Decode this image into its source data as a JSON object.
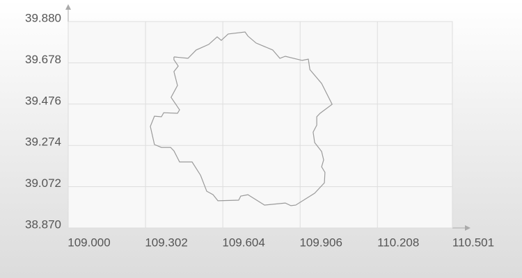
{
  "chart_data": {
    "type": "line",
    "x": [
      109.413,
      109.468,
      109.5,
      109.549,
      109.582,
      109.598,
      109.625,
      109.691,
      109.702,
      109.734,
      109.799,
      109.827,
      109.848,
      109.914,
      109.938,
      109.944,
      109.99,
      110.031,
      109.984,
      109.971,
      109.971,
      109.957,
      109.963,
      109.99,
      109.998,
      109.99,
      110.003,
      110.001,
      109.963,
      109.889,
      109.87,
      109.848,
      109.767,
      109.702,
      109.674,
      109.666,
      109.585,
      109.566,
      109.541,
      109.517,
      109.484,
      109.435,
      109.413,
      109.4,
      109.364,
      109.337,
      109.321,
      109.337,
      109.364,
      109.373,
      109.427,
      109.435,
      109.402,
      109.427,
      109.413,
      109.43,
      109.413,
      109.413
    ],
    "series": [
      {
        "color": "#9a9a9a",
        "values": [
          39.707,
          39.7,
          39.741,
          39.768,
          39.805,
          39.788,
          39.819,
          39.829,
          39.809,
          39.775,
          39.741,
          39.7,
          39.71,
          39.69,
          39.696,
          39.645,
          39.577,
          39.475,
          39.431,
          39.414,
          39.373,
          39.339,
          39.288,
          39.244,
          39.203,
          39.169,
          39.142,
          39.091,
          39.04,
          38.982,
          38.979,
          38.992,
          38.982,
          39.033,
          39.026,
          39.006,
          39.003,
          39.033,
          39.05,
          39.128,
          39.193,
          39.193,
          39.247,
          39.264,
          39.264,
          39.278,
          39.367,
          39.417,
          39.414,
          39.434,
          39.431,
          39.448,
          39.509,
          39.567,
          39.635,
          39.662,
          39.693,
          39.707
        ]
      }
    ],
    "xlim": [
      109.0,
      110.501
    ],
    "xticks": [
      {
        "value": 109.0,
        "label": "109.000"
      },
      109.302,
      109.604,
      109.906,
      110.208,
      110.501
    ],
    "ylim": [
      38.87,
      39.88
    ],
    "yticks": [
      {
        "value": 38.87,
        "label": "38.870"
      },
      39.072,
      39.274,
      39.476,
      39.678,
      {
        "value": 39.88,
        "label": "39.880"
      }
    ],
    "grid": true
  }
}
